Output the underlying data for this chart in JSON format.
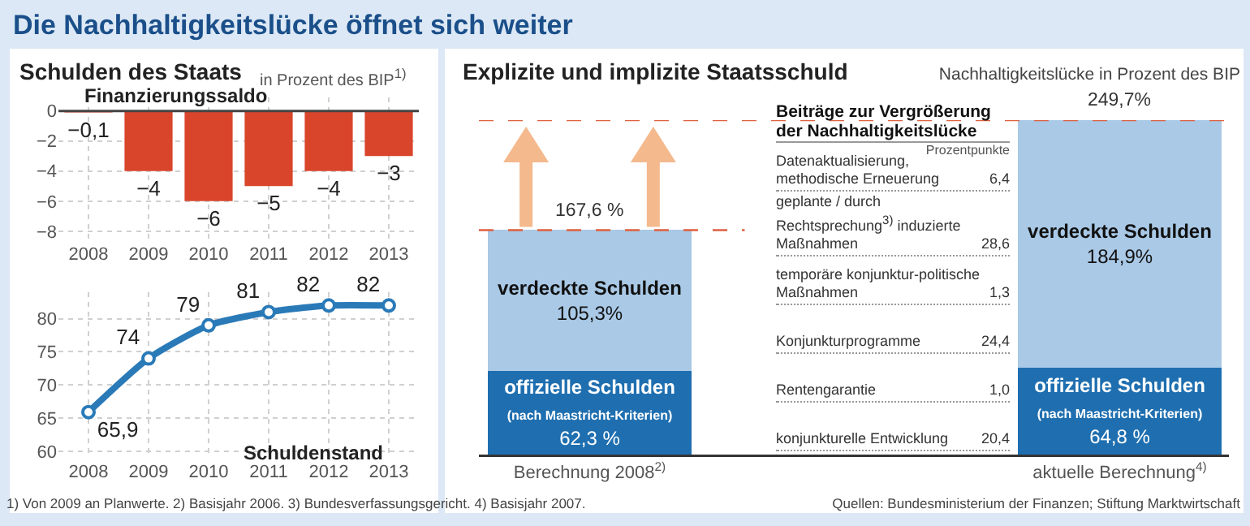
{
  "chart_data": [
    {
      "type": "bar",
      "title": "Die Nachhaltigkeitslücke öffnet sich weiter",
      "subtitle": "Schulden des Staats",
      "ylabel": "in Prozent des BIP$^{1)}$",
      "annotations": [
        "Finanzierungssaldo"
      ],
      "categories": [
        "2008",
        "2009",
        "2010",
        "2011",
        "2012",
        "2013"
      ],
      "values": [
        -0.1,
        -4,
        -6,
        -5,
        -4,
        -3
      ],
      "value_labels": [
        "−0,1",
        "−4",
        "−6",
        "−5",
        "−4",
        "−3"
      ],
      "color": "#d9452b",
      "ylim": [
        -8.6,
        0.9
      ],
      "yticks": [
        0,
        -2,
        -4,
        -6,
        -8
      ],
      "grid": true
    },
    {
      "type": "line",
      "annotations": [
        "Schuldenstand",
        "1) Von 2009 an Planwerte. 2) Basisjahr 2006. 3) Bundesverfassungsgericht. 4) Basisjahr 2007."
      ],
      "categories": [
        "2008",
        "2009",
        "2010",
        "2011",
        "2012",
        "2013"
      ],
      "values": [
        65.9,
        74,
        79,
        81,
        82,
        82
      ],
      "value_labels": [
        "65,9",
        "74",
        "79",
        "81",
        "82",
        "82"
      ],
      "color": "#2a7ab8",
      "marker": "circle",
      "ylim": [
        59,
        84
      ],
      "yticks": [
        60,
        65,
        70,
        75,
        80
      ],
      "grid": true
    },
    {
      "type": "bar",
      "title": "Explizite und implizite Staatsschuld",
      "ylabel": "Nachhaltigkeitslücke in Prozent des BIP",
      "annotations": [
        "Quellen: Bundesministerium der Finanzen; Stiftung Marktwirtschaft"
      ],
      "categories": [
        "Berechnung 2008$^{2)}$",
        "aktuelle Berechnung$^{4)}$"
      ],
      "stacked": true,
      "totals": [
        "167,6 %",
        "249,7%"
      ],
      "series": [
        {
          "name": "offizielle Schulden (nach Maastricht-Kriterien)",
          "color": "#1f6fb0",
          "values": [
            62.3,
            64.8
          ],
          "value_labels": [
            "62,3 %",
            "64,8 %"
          ]
        },
        {
          "name": "verdeckte Schulden",
          "color": "#a9c9e6",
          "values": [
            105.3,
            184.9
          ],
          "value_labels": [
            "105,3%",
            "184,9%"
          ]
        }
      ],
      "ref_lines": [
        {
          "axis": "y",
          "value": 167.6,
          "color": "#e0603f",
          "line_style": "dashed"
        },
        {
          "axis": "y",
          "value": 249.7,
          "color": "#e0603f",
          "line_style": "dashed"
        }
      ]
    },
    {
      "type": "other",
      "title": "Beiträge zur Vergrößerung der Nachhaltigkeitslücke",
      "subtitle": "Prozentpunkte",
      "categories": [
        "Datenaktualisierung, methodische Erneuerung",
        "geplante / durch Rechtsprechung$^{3)}$ induzierte Maßnahmen",
        "temporäre konjunktur-politische Maßnahmen",
        "Konjunkturprogramme",
        "Rentengarantie",
        "konjunkturelle Entwicklung"
      ],
      "values": [
        6.4,
        28.6,
        1.3,
        24.4,
        1.0,
        20.4
      ],
      "value_labels": [
        "6,4",
        "28,6",
        "1,3",
        "24,4",
        "1,0",
        "20,4"
      ]
    }
  ]
}
